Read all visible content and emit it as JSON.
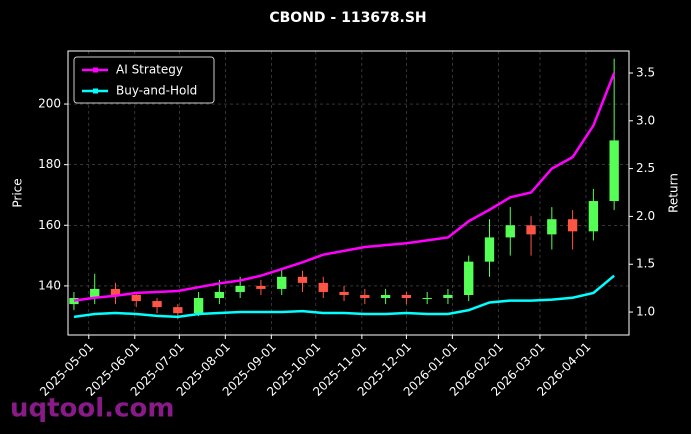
{
  "chart_data": {
    "type": "candlestick",
    "title": "CBOND - 113678.SH",
    "ylabel": "Price",
    "y2label": "Return",
    "watermark": "uqtool.com",
    "up_color": "#55ff55",
    "down_color": "#ff5544",
    "grid": true,
    "legend": "upper left",
    "x": [
      "2025-04-21",
      "2025-05-05",
      "2025-05-19",
      "2025-06-02",
      "2025-06-16",
      "2025-06-30",
      "2025-07-14",
      "2025-07-28",
      "2025-08-11",
      "2025-08-25",
      "2025-09-08",
      "2025-09-22",
      "2025-10-06",
      "2025-10-20",
      "2025-11-03",
      "2025-11-17",
      "2025-12-01",
      "2025-12-15",
      "2025-12-29",
      "2026-01-12",
      "2026-01-26",
      "2026-02-09",
      "2026-02-23",
      "2026-03-09",
      "2026-03-23",
      "2026-04-06",
      "2026-04-20"
    ],
    "open": [
      134,
      136,
      139,
      137,
      135,
      133,
      131,
      136,
      138,
      140,
      139,
      143,
      141,
      138,
      137,
      136,
      137,
      136,
      136,
      137,
      148,
      156,
      160,
      157,
      162,
      158,
      168
    ],
    "high": [
      138,
      144,
      141,
      138,
      136,
      134,
      138,
      142,
      143,
      142,
      146,
      145,
      143,
      140,
      139,
      139,
      138,
      138,
      139,
      150,
      162,
      166,
      163,
      166,
      165,
      172,
      215
    ],
    "low": [
      132,
      134,
      134,
      133,
      131,
      129,
      130,
      134,
      136,
      137,
      137,
      138,
      136,
      135,
      134,
      134,
      134,
      134,
      134,
      135,
      143,
      150,
      150,
      152,
      152,
      155,
      165
    ],
    "close": [
      136,
      139,
      137,
      135,
      133,
      131,
      136,
      138,
      140,
      139,
      143,
      141,
      138,
      137,
      136,
      137,
      136,
      136,
      137,
      148,
      156,
      160,
      157,
      162,
      158,
      168,
      188
    ],
    "series": [
      {
        "name": "AI Strategy",
        "color": "#ff00ff",
        "axis": "y2",
        "values": [
          1.12,
          1.15,
          1.17,
          1.2,
          1.21,
          1.22,
          1.26,
          1.3,
          1.33,
          1.38,
          1.45,
          1.52,
          1.6,
          1.64,
          1.68,
          1.7,
          1.72,
          1.75,
          1.78,
          1.95,
          2.07,
          2.2,
          2.25,
          2.5,
          2.62,
          2.95,
          3.5
        ]
      },
      {
        "name": "Buy-and-Hold",
        "color": "#00ffff",
        "axis": "y2",
        "values": [
          0.95,
          0.98,
          0.99,
          0.98,
          0.96,
          0.95,
          0.98,
          0.99,
          1.0,
          1.0,
          1.0,
          1.01,
          0.99,
          0.99,
          0.98,
          0.98,
          0.99,
          0.98,
          0.98,
          1.02,
          1.1,
          1.12,
          1.12,
          1.13,
          1.15,
          1.2,
          1.38
        ]
      }
    ],
    "xlim": [
      "2025-04-17",
      "2026-04-30"
    ],
    "xticks": [
      "2025-05-01",
      "2025-06-01",
      "2025-07-01",
      "2025-08-01",
      "2025-09-01",
      "2025-10-01",
      "2025-11-01",
      "2025-12-01",
      "2026-01-01",
      "2026-02-01",
      "2026-03-01",
      "2026-04-01"
    ],
    "ylim": [
      123.8,
      217.5
    ],
    "yticks": [
      140,
      160,
      180,
      200
    ],
    "y2lim": [
      0.76,
      3.73
    ],
    "y2ticks": [
      {
        "value": 1,
        "label": "1.0"
      },
      1.5,
      {
        "value": 2,
        "label": "2.0"
      },
      2.5,
      {
        "value": 3,
        "label": "3.0"
      },
      3.5
    ]
  }
}
